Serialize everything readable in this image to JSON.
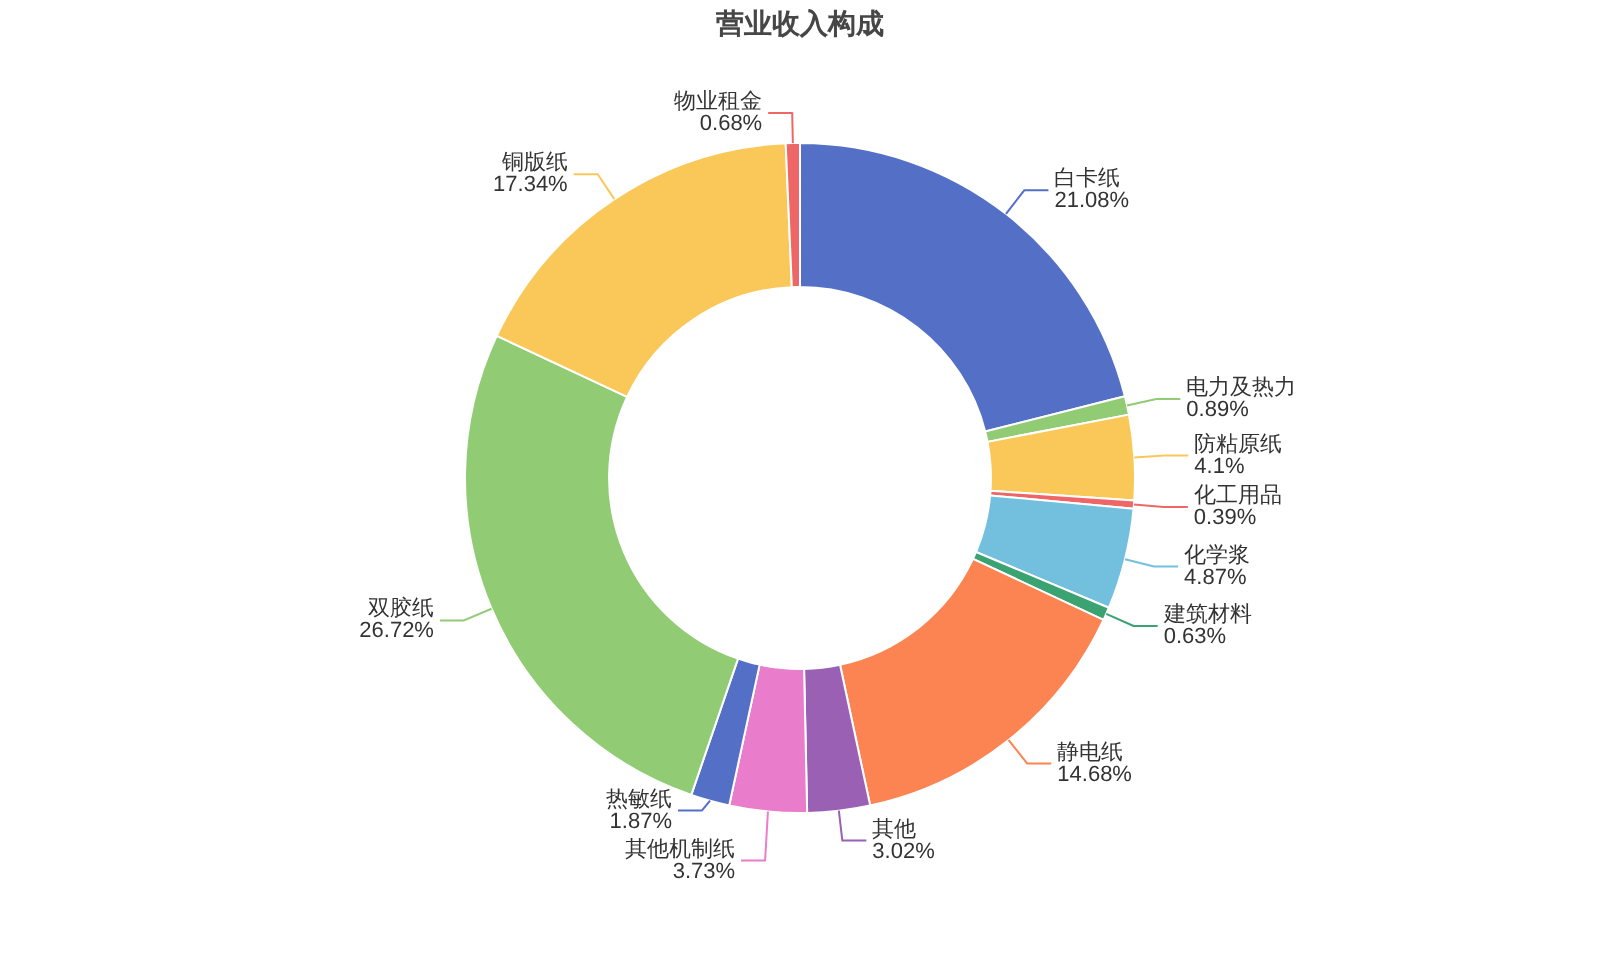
{
  "chart_data": {
    "type": "donut",
    "title": "营业收入构成",
    "categories": [
      "白卡纸",
      "电力及热力",
      "防粘原纸",
      "化工用品",
      "化学浆",
      "建筑材料",
      "静电纸",
      "其他",
      "其他机制纸",
      "热敏纸",
      "双胶纸",
      "铜版纸",
      "物业租金"
    ],
    "values": [
      21.08,
      0.89,
      4.1,
      0.39,
      4.87,
      0.63,
      14.68,
      3.02,
      3.73,
      1.87,
      26.72,
      17.34,
      0.68
    ],
    "value_labels": [
      "21.08%",
      "0.89%",
      "4.1%",
      "0.39%",
      "4.87%",
      "0.63%",
      "14.68%",
      "3.02%",
      "3.73%",
      "1.87%",
      "26.72%",
      "17.34%",
      "0.68%"
    ],
    "colors": [
      "#5470c6",
      "#91cc75",
      "#fac858",
      "#ee6666",
      "#73c0de",
      "#3ba272",
      "#fc8452",
      "#9a60b4",
      "#ea7ccc",
      "#5470c6",
      "#91cc75",
      "#fac858",
      "#ee6666"
    ]
  }
}
